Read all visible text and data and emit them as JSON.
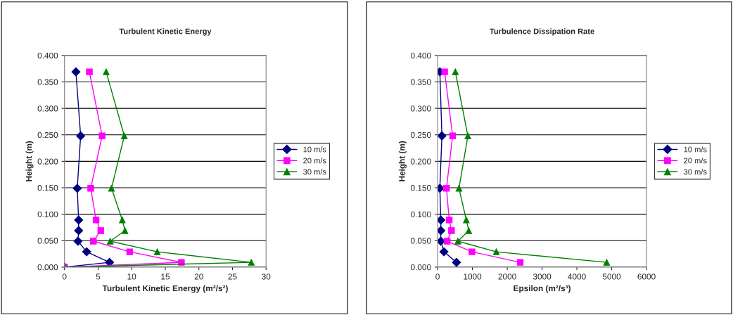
{
  "chart_data": [
    {
      "type": "line",
      "title": "Turbulent Kinetic Energy",
      "xlabel": "Turbulent Kinetic Energy (m²/s²)",
      "ylabel": "Height (m)",
      "xlim": [
        0,
        30
      ],
      "xticks": [
        0,
        5,
        10,
        15,
        20,
        25,
        30
      ],
      "ylim": [
        0,
        0.4
      ],
      "yticks": [
        {
          "value": 0,
          "label": "0.000"
        },
        {
          "value": 0.05,
          "label": "0.050"
        },
        {
          "value": 0.1,
          "label": "0.100"
        },
        {
          "value": 0.15,
          "label": "0.150"
        },
        {
          "value": 0.2,
          "label": "0.200"
        },
        {
          "value": 0.25,
          "label": "0.250"
        },
        {
          "value": 0.3,
          "label": "0.300"
        },
        {
          "value": 0.35,
          "label": "0.350"
        },
        {
          "value": 0.4,
          "label": "0.400"
        }
      ],
      "grid": "y",
      "legend": "right",
      "series": [
        {
          "name": "10 m/s",
          "color": "#000080",
          "marker": "diamond",
          "x": [
            1.7,
            2.4,
            1.9,
            2.1,
            2.1,
            2.0,
            3.3,
            6.7,
            0
          ],
          "values": [
            0.369,
            0.248,
            0.149,
            0.089,
            0.069,
            0.049,
            0.029,
            0.009,
            0
          ]
        },
        {
          "name": "20 m/s",
          "color": "#ff00ff",
          "marker": "square",
          "x": [
            3.7,
            5.6,
            3.9,
            4.7,
            5.4,
            4.3,
            9.7,
            17.4,
            0
          ],
          "values": [
            0.369,
            0.248,
            0.149,
            0.089,
            0.069,
            0.049,
            0.029,
            0.009,
            0
          ]
        },
        {
          "name": "30 m/s",
          "color": "#008000",
          "marker": "triangle",
          "x": [
            6.2,
            8.9,
            7.0,
            8.6,
            9.0,
            6.8,
            13.8,
            27.8,
            0
          ],
          "values": [
            0.369,
            0.248,
            0.149,
            0.089,
            0.069,
            0.049,
            0.029,
            0.009,
            0
          ]
        }
      ]
    },
    {
      "type": "line",
      "title": "Turbulence Dissipation Rate",
      "xlabel": "Epsilon (m²/s³)",
      "ylabel": "Height (m)",
      "xlim": [
        0,
        6000
      ],
      "xticks": [
        0,
        1000,
        2000,
        3000,
        4000,
        5000,
        6000
      ],
      "ylim": [
        0,
        0.4
      ],
      "yticks": [
        {
          "value": 0,
          "label": "0.000"
        },
        {
          "value": 0.05,
          "label": "0.050"
        },
        {
          "value": 0.1,
          "label": "0.100"
        },
        {
          "value": 0.15,
          "label": "0.150"
        },
        {
          "value": 0.2,
          "label": "0.200"
        },
        {
          "value": 0.25,
          "label": "0.250"
        },
        {
          "value": 0.3,
          "label": "0.300"
        },
        {
          "value": 0.35,
          "label": "0.350"
        },
        {
          "value": 0.4,
          "label": "0.400"
        }
      ],
      "grid": "y",
      "legend": "right",
      "series": [
        {
          "name": "10 m/s",
          "color": "#000080",
          "marker": "diamond",
          "x": [
            65,
            124,
            65,
            92,
            92,
            92,
            183,
            542
          ],
          "values": [
            0.369,
            0.248,
            0.149,
            0.089,
            0.069,
            0.049,
            0.029,
            0.009
          ]
        },
        {
          "name": "20 m/s",
          "color": "#ff00ff",
          "marker": "square",
          "x": [
            203,
            431,
            255,
            333,
            399,
            275,
            987,
            2373
          ],
          "values": [
            0.369,
            0.248,
            0.149,
            0.089,
            0.069,
            0.049,
            0.029,
            0.009
          ]
        },
        {
          "name": "30 m/s",
          "color": "#008000",
          "marker": "triangle",
          "x": [
            510,
            869,
            614,
            824,
            895,
            582,
            1686,
            4856
          ],
          "values": [
            0.369,
            0.248,
            0.149,
            0.089,
            0.069,
            0.049,
            0.029,
            0.009
          ]
        }
      ]
    }
  ]
}
